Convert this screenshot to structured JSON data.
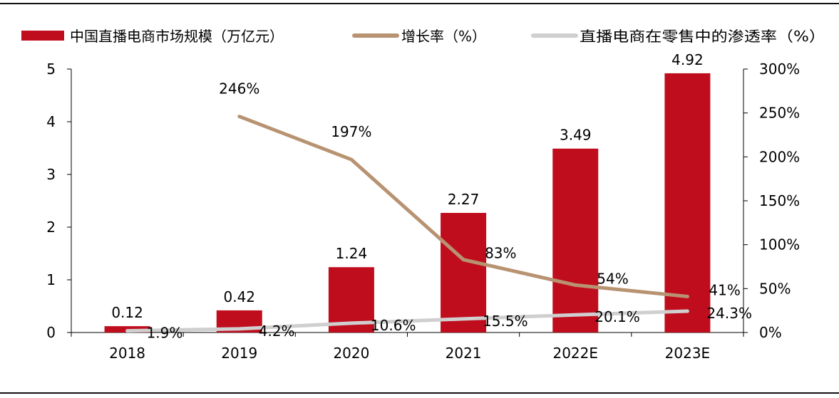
{
  "chart_data": {
    "type": "bar+line",
    "categories": [
      "2018",
      "2019",
      "2020",
      "2021",
      "2022E",
      "2023E"
    ],
    "series": [
      {
        "name": "中国直播电商市场规模（万亿元）",
        "type": "bar",
        "axis": "left",
        "color": "#C00D1E",
        "values": [
          0.12,
          0.42,
          1.24,
          2.27,
          3.49,
          4.92
        ],
        "labels": [
          "0.12",
          "0.42",
          "1.24",
          "2.27",
          "3.49",
          "4.92"
        ]
      },
      {
        "name": "增长率（%）",
        "type": "line",
        "axis": "right",
        "color": "#B89372",
        "values": [
          null,
          246,
          197,
          83,
          54,
          41
        ],
        "labels": [
          "",
          "246%",
          "197%",
          "83%",
          "54%",
          "41%"
        ]
      },
      {
        "name": "直播电商在零售中的渗透率（%）",
        "type": "line",
        "axis": "right",
        "color": "#CFCFCF",
        "values": [
          1.9,
          4.2,
          10.6,
          15.5,
          20.1,
          24.3
        ],
        "labels": [
          "1.9%",
          "4.2%",
          "10.6%",
          "15.5%",
          "20.1%",
          "24.3%"
        ]
      }
    ],
    "y_left": {
      "ylim": [
        0,
        5
      ],
      "ticks": [
        "0",
        "1",
        "2",
        "3",
        "4",
        "5"
      ]
    },
    "y_right": {
      "ylim": [
        0,
        300
      ],
      "ticks": [
        "0%",
        "50%",
        "100%",
        "150%",
        "200%",
        "250%",
        "300%"
      ]
    },
    "legend_position": "top",
    "grid": false
  }
}
